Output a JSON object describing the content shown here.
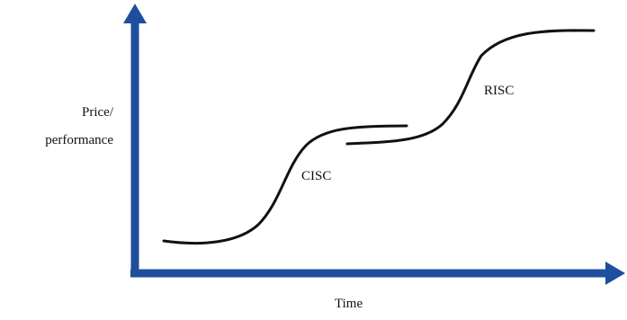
{
  "diagram": {
    "y_axis_label_line1": "Price/",
    "y_axis_label_line2": "performance",
    "x_axis_label": "Time",
    "curves": [
      {
        "label": "CISC"
      },
      {
        "label": "RISC"
      }
    ],
    "colors": {
      "axis": "#1f4e9e",
      "curve": "#111111",
      "text": "#111111",
      "background": "#ffffff"
    }
  }
}
